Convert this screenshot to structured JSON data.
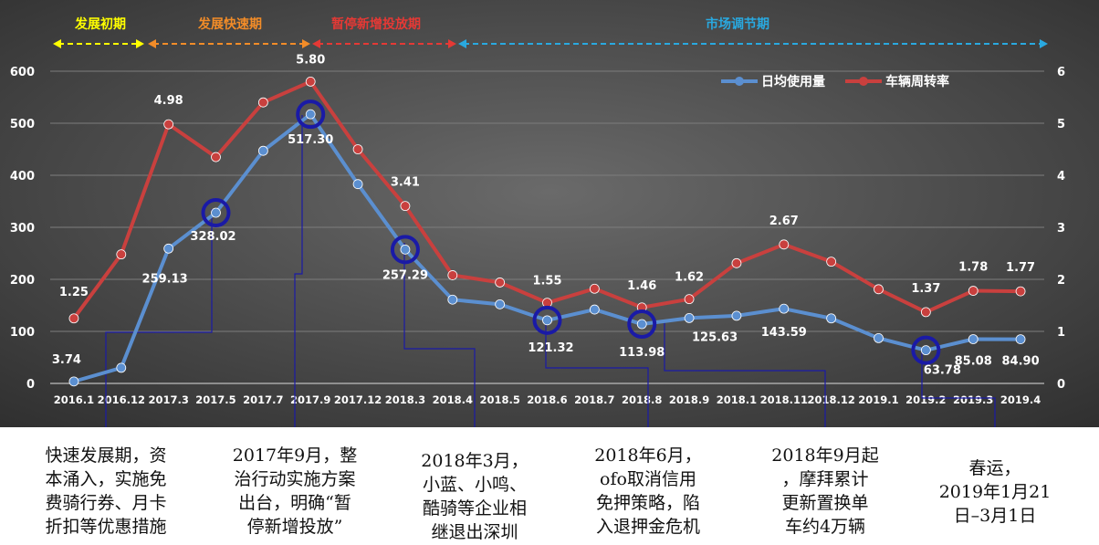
{
  "phases": [
    {
      "label": "发展初期",
      "color": "#ffff00"
    },
    {
      "label": "发展快速期",
      "color": "#f28c28"
    },
    {
      "label": "暂停新增投放期",
      "color": "#e53935"
    },
    {
      "label": "市场调节期",
      "color": "#29a9e0"
    }
  ],
  "legend": {
    "position": "top-right"
  },
  "notes": [
    {
      "text": "快速发展期，资\n本涌入，实施免\n费骑行券、月卡\n折扣等优惠措施",
      "anchor": 3
    },
    {
      "text": "2017年9月，整\n治行动实施方案\n出台，明确“暂\n停新增投放”",
      "anchor": 5
    },
    {
      "text": "2018年3月，\n小蓝、小鸣、\n酷骑等企业相\n继退出深圳",
      "anchor": 7
    },
    {
      "text": "2018年6月，\nofo取消信用\n免押策略，陷\n入退押金危机",
      "anchor": 10
    },
    {
      "text": "2018年9月起\n，摩拜累计\n更新置换单\n车约4万辆",
      "anchor": 13
    },
    {
      "text": "春运，\n2019年1月21\n日–3月1日",
      "anchor": 18
    }
  ],
  "chart_data": {
    "type": "line",
    "categories": [
      "2016.1",
      "2016.12",
      "2017.3",
      "2017.5",
      "2017.7",
      "2017.9",
      "2017.12",
      "2018.3",
      "2018.4",
      "2018.5",
      "2018.6",
      "2018.7",
      "2018.8",
      "2018.9",
      "2018.1",
      "2018.11",
      "2018.12",
      "2019.1",
      "2019.2",
      "2019.3",
      "2019.4"
    ],
    "y_left": {
      "ticks": [
        "0",
        "100",
        "200",
        "300",
        "400",
        "500",
        "600"
      ],
      "lim": [
        0,
        600
      ]
    },
    "y_right": {
      "ticks": [
        "0",
        "1",
        "2",
        "3",
        "4",
        "5",
        "6"
      ],
      "lim": [
        0,
        6
      ]
    },
    "grid": true,
    "series": [
      {
        "name": "日均使用量",
        "axis": "left",
        "color": "#5b8fd0",
        "values": [
          3.74,
          30,
          259.13,
          328.02,
          447,
          517.3,
          383,
          257.29,
          161,
          152,
          121.32,
          142,
          113.98,
          125.63,
          130,
          143.59,
          125,
          87,
          63.78,
          85.08,
          84.9
        ],
        "labels": {
          "0": "3.74",
          "2": "259.13",
          "3": "328.02",
          "5": "517.30",
          "7": "257.29",
          "10": "121.32",
          "12": "113.98",
          "13": "125.63",
          "15": "143.59",
          "18": "63.78",
          "19": "85.08",
          "20": "84.90"
        }
      },
      {
        "name": "车辆周转率",
        "axis": "right",
        "color": "#c9403e",
        "values": [
          1.25,
          2.48,
          4.98,
          4.35,
          5.4,
          5.8,
          4.5,
          3.41,
          2.08,
          1.94,
          1.55,
          1.82,
          1.46,
          1.62,
          2.31,
          2.67,
          2.34,
          1.81,
          1.37,
          1.78,
          1.77
        ],
        "labels": {
          "0": "1.25",
          "2": "4.98",
          "5": "5.80",
          "7": "3.41",
          "10": "1.55",
          "12": "1.46",
          "13": "1.62",
          "15": "2.67",
          "18": "1.37",
          "19": "1.78",
          "20": "1.77"
        }
      }
    ],
    "highlighted_points": [
      3,
      5,
      7,
      10,
      12,
      18
    ]
  }
}
